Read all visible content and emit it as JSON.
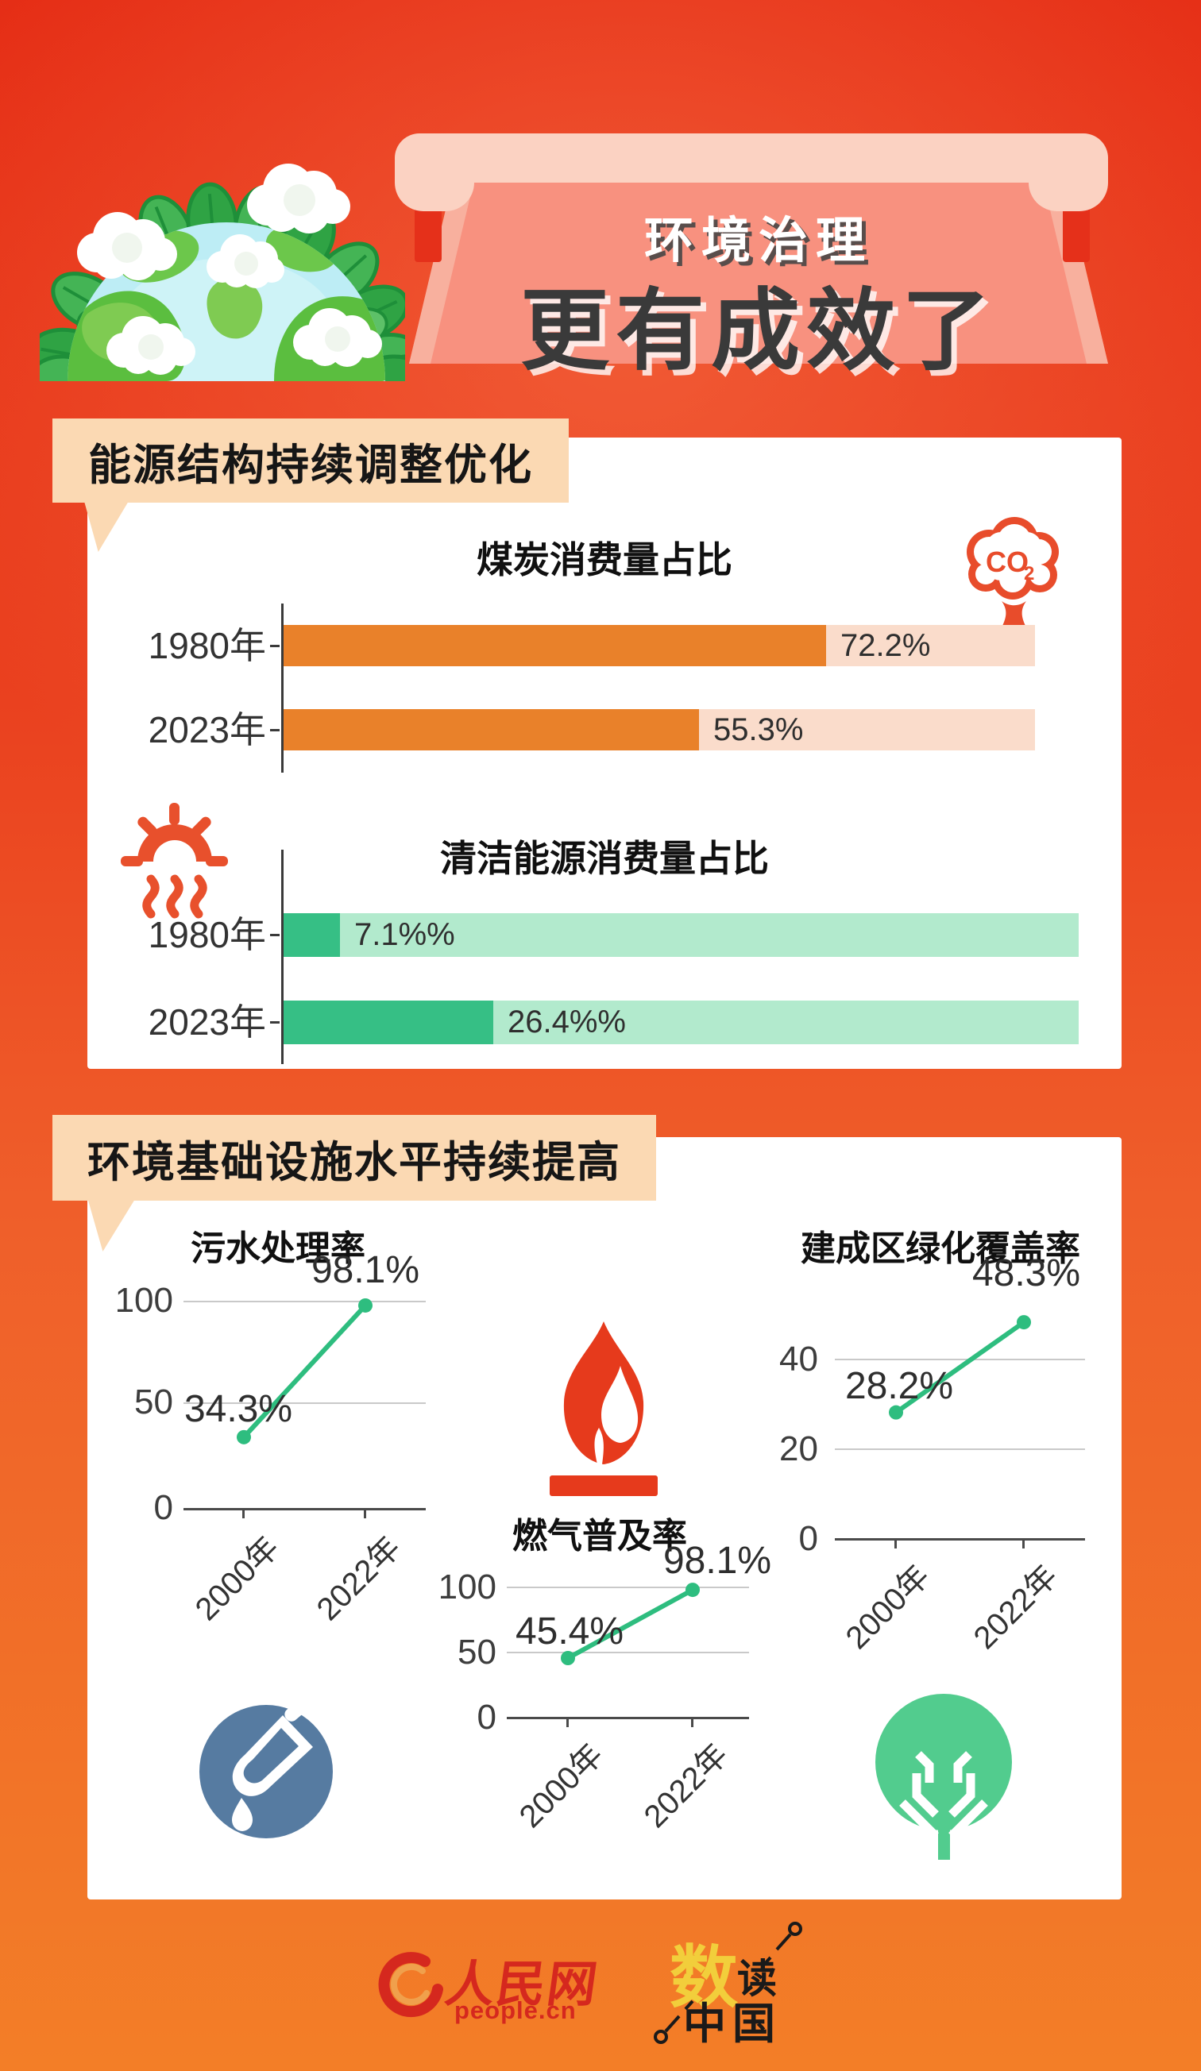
{
  "header": {
    "banner_small": "环境治理",
    "banner_big": "更有成效了"
  },
  "section_energy": {
    "badge": "能源结构持续调整优化",
    "coal_chart": {
      "title": "煤炭消费量占比",
      "co2_main": "CO",
      "co2_sub": "2",
      "rows": [
        {
          "year": "1980年",
          "value": 72.2,
          "label": "72.2%"
        },
        {
          "year": "2023年",
          "value": 55.3,
          "label": "55.3%"
        }
      ]
    },
    "clean_chart": {
      "title": "清洁能源消费量占比",
      "rows": [
        {
          "year": "1980年",
          "value": 7.1,
          "label": "7.1%%"
        },
        {
          "year": "2023年",
          "value": 26.4,
          "label": "26.4%%"
        }
      ]
    }
  },
  "section_infra": {
    "badge": "环境基础设施水平持续提高",
    "sewage_chart": {
      "title": "污水处理率",
      "yticks": [
        "100",
        "50",
        "0"
      ],
      "points": [
        {
          "x": "2000年",
          "value": 34.3,
          "label": "34.3%"
        },
        {
          "x": "2022年",
          "value": 98.1,
          "label": "98.1%"
        }
      ]
    },
    "gas_chart": {
      "title": "燃气普及率",
      "yticks": [
        "100",
        "50",
        "0"
      ],
      "points": [
        {
          "x": "2000年",
          "value": 45.4,
          "label": "45.4%"
        },
        {
          "x": "2022年",
          "value": 98.1,
          "label": "98.1%"
        }
      ]
    },
    "green_chart": {
      "title": "建成区绿化覆盖率",
      "yticks": [
        "40",
        "20",
        "0"
      ],
      "points": [
        {
          "x": "2000年",
          "value": 28.2,
          "label": "28.2%"
        },
        {
          "x": "2022年",
          "value": 48.3,
          "label": "48.3%"
        }
      ]
    }
  },
  "footer": {
    "people_name": "人民网",
    "people_domain": "people.cn",
    "brand_char_1": "数",
    "brand_char_2": "读",
    "brand_char_3": "中国"
  },
  "icons": {
    "earth": "earth-with-leaves-illustration",
    "co2": "co2-cloud-icon",
    "sun": "sun-heat-icon",
    "flame": "gas-flame-icon",
    "water": "water-tap-drop-icon",
    "tree": "tree-icon",
    "people_swoosh": "people-cn-logo-swoosh",
    "pins": "needle-pin-decorations"
  },
  "colors": {
    "background_top": "#E52D15",
    "background_bottom": "#F37E27",
    "banner_rod": "#FBD2C2",
    "banner_panel": "#F8917F",
    "banner_strap": "#E5301A",
    "badge_bg": "#FBD9B3",
    "card_bg": "#FFFFFF",
    "coal_bar": "#E9812A",
    "coal_track": "#FADCCB",
    "clean_bar": "#36BF85",
    "clean_track": "#B2EACD",
    "line_green": "#2EBD7F",
    "grid": "#C9C9C9",
    "axis": "#3A3A3A",
    "co2_icon": "#E84C2B",
    "sun_icon": "#E8502C",
    "flame_icon": "#E63A1C",
    "water_icon": "#567BA1",
    "tree_icon": "#52CC8E",
    "people_red": "#D5281E",
    "shudu_yellow": "#F2CE3B"
  },
  "chart_data": [
    {
      "type": "bar",
      "orientation": "horizontal",
      "title": "煤炭消费量占比",
      "categories": [
        "1980年",
        "2023年"
      ],
      "values": [
        72.2,
        55.3
      ],
      "value_labels": [
        "72.2%",
        "55.3%"
      ],
      "unit": "%",
      "xlim": [
        0,
        100
      ],
      "bar_color": "#E9812A",
      "track_color": "#FADCCB"
    },
    {
      "type": "bar",
      "orientation": "horizontal",
      "title": "清洁能源消费量占比",
      "categories": [
        "1980年",
        "2023年"
      ],
      "values": [
        7.1,
        26.4
      ],
      "value_labels": [
        "7.1%%",
        "26.4%%"
      ],
      "unit": "%",
      "xlim": [
        0,
        100
      ],
      "bar_color": "#36BF85",
      "track_color": "#B2EACD"
    },
    {
      "type": "line",
      "title": "污水处理率",
      "x": [
        "2000年",
        "2022年"
      ],
      "values": [
        34.3,
        98.1
      ],
      "value_labels": [
        "34.3%",
        "98.1%"
      ],
      "yticks": [
        0,
        50,
        100
      ],
      "ylim": [
        0,
        110
      ],
      "line_color": "#2EBD7F",
      "grid": true
    },
    {
      "type": "line",
      "title": "燃气普及率",
      "x": [
        "2000年",
        "2022年"
      ],
      "values": [
        45.4,
        98.1
      ],
      "value_labels": [
        "45.4%",
        "98.1%"
      ],
      "yticks": [
        0,
        50,
        100
      ],
      "ylim": [
        0,
        110
      ],
      "line_color": "#2EBD7F",
      "grid": true
    },
    {
      "type": "line",
      "title": "建成区绿化覆盖率",
      "x": [
        "2000年",
        "2022年"
      ],
      "values": [
        28.2,
        48.3
      ],
      "value_labels": [
        "28.2%",
        "48.3%"
      ],
      "yticks": [
        0,
        20,
        40
      ],
      "ylim": [
        0,
        52
      ],
      "line_color": "#2EBD7F",
      "grid": true
    }
  ]
}
